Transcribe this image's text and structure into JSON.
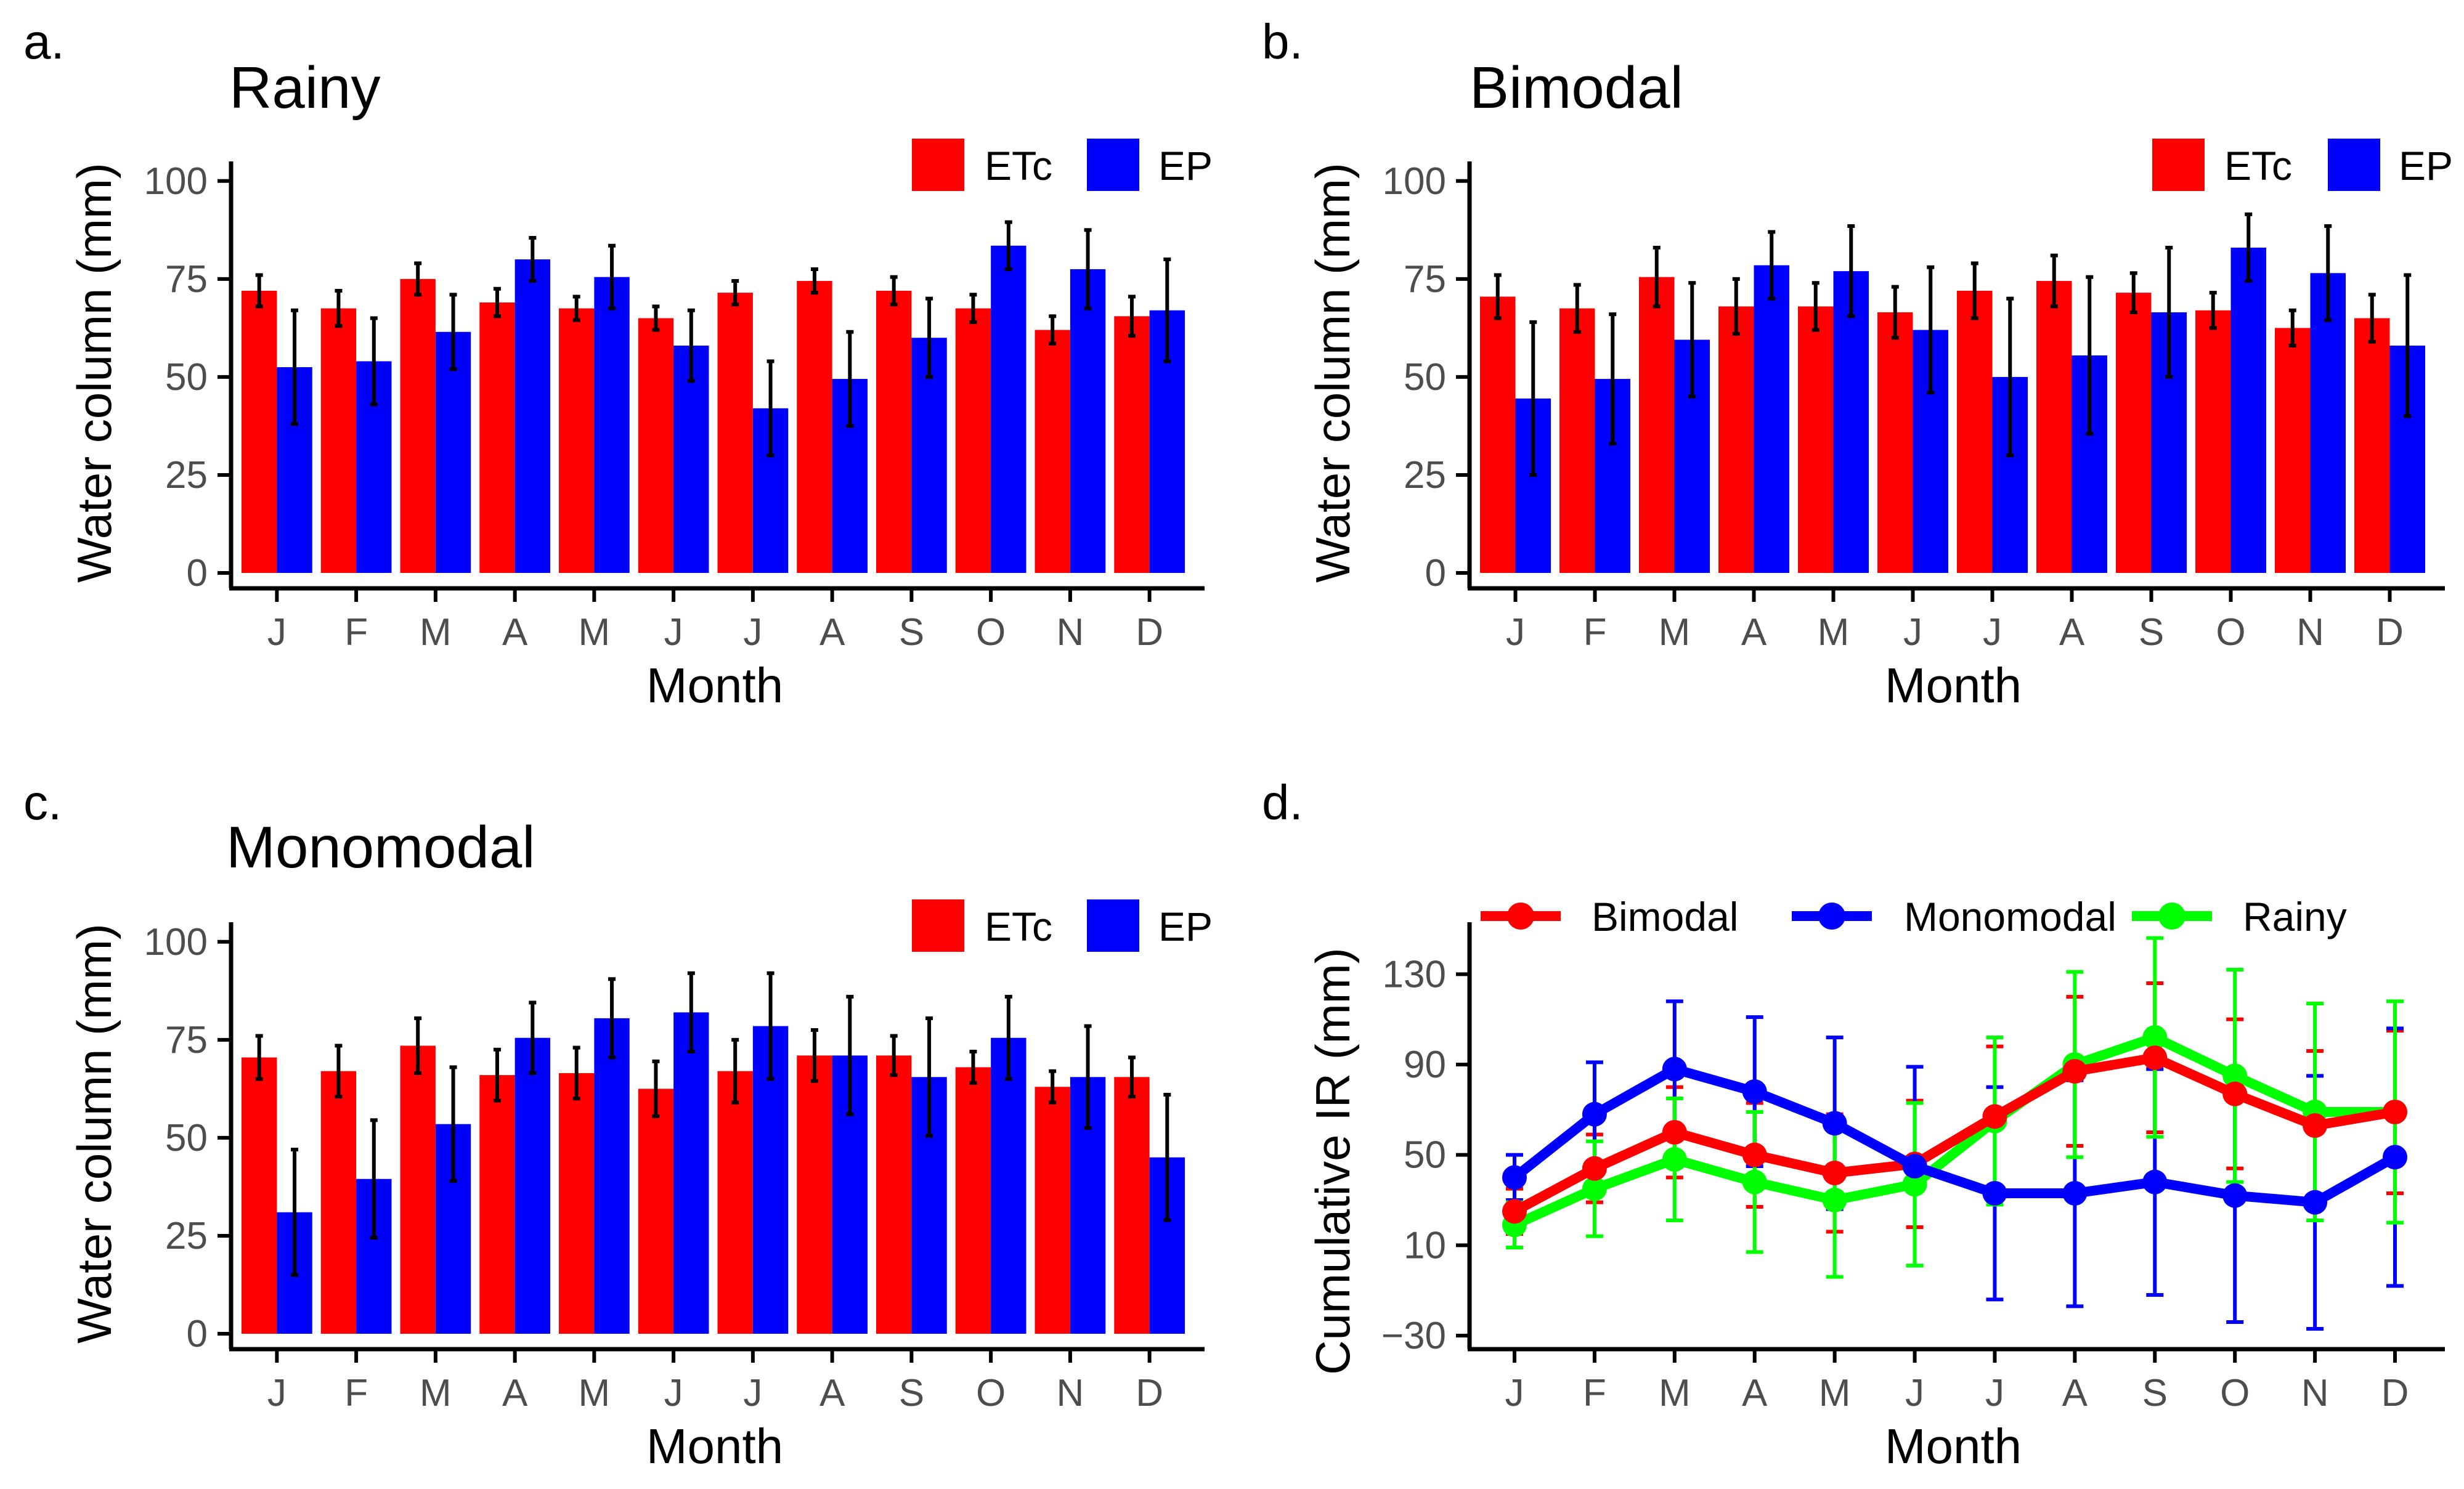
{
  "colors": {
    "etc": "#ff0000",
    "ep": "#0000ff",
    "bimodal": "#ff0000",
    "monomodal": "#0000ff",
    "rainy": "#00ff00",
    "axis": "#000000",
    "tick_label": "#4d4d4d"
  },
  "chart_data": [
    {
      "panel_label": "a.",
      "type": "bar",
      "title": "Rainy",
      "xlabel": "Month",
      "ylabel": "Water column (mm)",
      "ylim": [
        0,
        105
      ],
      "yticks": [
        "0",
        "25",
        "50",
        "75",
        "100"
      ],
      "categories": [
        "J",
        "F",
        "M",
        "A",
        "M",
        "J",
        "J",
        "A",
        "S",
        "O",
        "N",
        "D"
      ],
      "legend": [
        "ETc",
        "EP"
      ],
      "series": [
        {
          "name": "ETc",
          "values": [
            72,
            67.5,
            75,
            69,
            67.5,
            65,
            71.5,
            74.5,
            72,
            67.5,
            62,
            65.5
          ],
          "errors": [
            4,
            4.5,
            4,
            3.5,
            3,
            3,
            3,
            3,
            3.5,
            3.5,
            3.5,
            5
          ]
        },
        {
          "name": "EP",
          "values": [
            52.5,
            54,
            61.5,
            80,
            75.5,
            58,
            42,
            49.5,
            60,
            83.5,
            77.5,
            67
          ],
          "errors": [
            14.5,
            11,
            9.5,
            5.5,
            8,
            9,
            12,
            12,
            10,
            6,
            10,
            13
          ]
        }
      ]
    },
    {
      "panel_label": "b.",
      "type": "bar",
      "title": "Bimodal",
      "xlabel": "Month",
      "ylabel": "Water column (mm)",
      "ylim": [
        0,
        105
      ],
      "yticks": [
        "0",
        "25",
        "50",
        "75",
        "100"
      ],
      "categories": [
        "J",
        "F",
        "M",
        "A",
        "M",
        "J",
        "J",
        "A",
        "S",
        "O",
        "N",
        "D"
      ],
      "legend": [
        "ETc",
        "EP"
      ],
      "series": [
        {
          "name": "ETc",
          "values": [
            70.5,
            67.5,
            75.5,
            68,
            68,
            66.5,
            72,
            74.5,
            71.5,
            67,
            62.5,
            65
          ],
          "errors": [
            5.5,
            6,
            7.5,
            7,
            6,
            6.5,
            7,
            6.5,
            5,
            4.5,
            4.5,
            6
          ]
        },
        {
          "name": "EP",
          "values": [
            44.5,
            49.5,
            59.5,
            78.5,
            77,
            62,
            50,
            55.5,
            66.5,
            83,
            76.5,
            58
          ],
          "errors": [
            19.5,
            16.5,
            14.5,
            8.5,
            11.5,
            16,
            20,
            20,
            16.5,
            8.5,
            12,
            18
          ]
        }
      ]
    },
    {
      "panel_label": "c.",
      "type": "bar",
      "title": "Monomodal",
      "xlabel": "Month",
      "ylabel": "Water column (mm)",
      "ylim": [
        0,
        105
      ],
      "yticks": [
        "0",
        "25",
        "50",
        "75",
        "100"
      ],
      "categories": [
        "J",
        "F",
        "M",
        "A",
        "M",
        "J",
        "J",
        "A",
        "S",
        "O",
        "N",
        "D"
      ],
      "legend": [
        "ETc",
        "EP"
      ],
      "series": [
        {
          "name": "ETc",
          "values": [
            70.5,
            67,
            73.5,
            66,
            66.5,
            62.5,
            67,
            71,
            71,
            68,
            63,
            65.5
          ],
          "errors": [
            5.5,
            6.5,
            7,
            6.5,
            6.5,
            7,
            8,
            6.5,
            5,
            4,
            4,
            5
          ]
        },
        {
          "name": "EP",
          "values": [
            31,
            39.5,
            53.5,
            75.5,
            80.5,
            82,
            78.5,
            71,
            65.5,
            75.5,
            65.5,
            45
          ],
          "errors": [
            16,
            15,
            14.5,
            9,
            10,
            10,
            13.5,
            15,
            15,
            10.5,
            13,
            16
          ]
        }
      ]
    },
    {
      "panel_label": "d.",
      "type": "line",
      "title": "",
      "xlabel": "Month",
      "ylabel": "Cumulative IR (mm)",
      "ylim": [
        -36,
        153
      ],
      "yticks": [
        "−30",
        "10",
        "50",
        "90",
        "130"
      ],
      "ytick_values": [
        -30,
        10,
        50,
        90,
        130
      ],
      "categories": [
        "J",
        "F",
        "M",
        "A",
        "M",
        "J",
        "J",
        "A",
        "S",
        "O",
        "N",
        "D"
      ],
      "legend": [
        "Bimodal",
        "Monomodal",
        "Rainy"
      ],
      "series": [
        {
          "name": "Bimodal",
          "values": [
            25,
            44,
            60,
            50,
            42,
            46,
            67,
            87,
            93,
            77,
            63,
            69
          ],
          "errors": [
            10,
            15,
            20,
            23,
            26,
            28,
            31,
            33,
            33,
            33,
            33,
            36
          ]
        },
        {
          "name": "Monomodal",
          "values": [
            40,
            68,
            88,
            78,
            64,
            45,
            33,
            33,
            38,
            32,
            29,
            49
          ],
          "errors": [
            10,
            23,
            30,
            33,
            38,
            44,
            47,
            50,
            50,
            56,
            56,
            57
          ]
        },
        {
          "name": "Rainy",
          "values": [
            19,
            35,
            48,
            38,
            30,
            37,
            65,
            90,
            102,
            85,
            69,
            69
          ],
          "errors": [
            10,
            21,
            27,
            31,
            34,
            36,
            37,
            41,
            44,
            47,
            48,
            49
          ]
        }
      ]
    }
  ]
}
